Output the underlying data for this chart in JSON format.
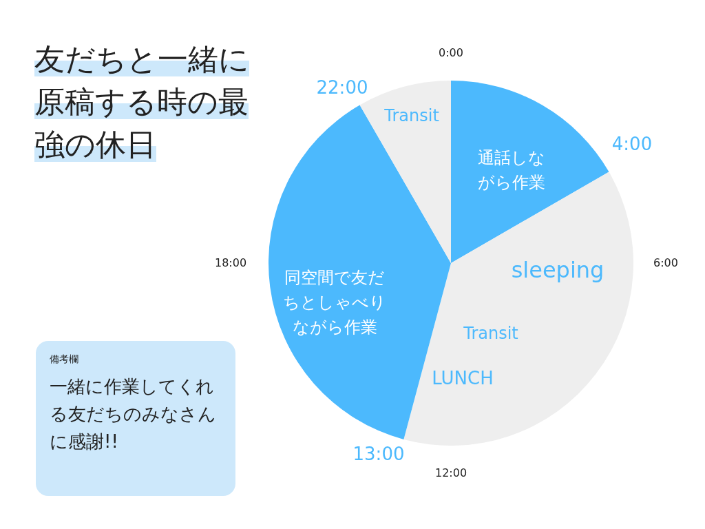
{
  "chart_data": {
    "type": "pie",
    "title": "友だちと一緒に原稿する時の最強の休日",
    "categories": [
      "通話しながら作業",
      null,
      "同空間で友だちとしゃべりながら作業",
      "Transit"
    ],
    "values": [
      16.67,
      37.5,
      37.5,
      8.33
    ],
    "colors": [
      "#4cb9fd",
      "#eeeeee",
      "#4cb9fd",
      "#eeeeee"
    ],
    "annotations": [
      "0:00",
      "6:00",
      "12:00",
      "18:00",
      "22:00",
      "4:00",
      "13:00",
      "sleeping",
      "Transit",
      "LUNCH",
      "備考欄",
      "一緒に作業してくれる友だちのみなさんに感謝!!"
    ]
  }
}
